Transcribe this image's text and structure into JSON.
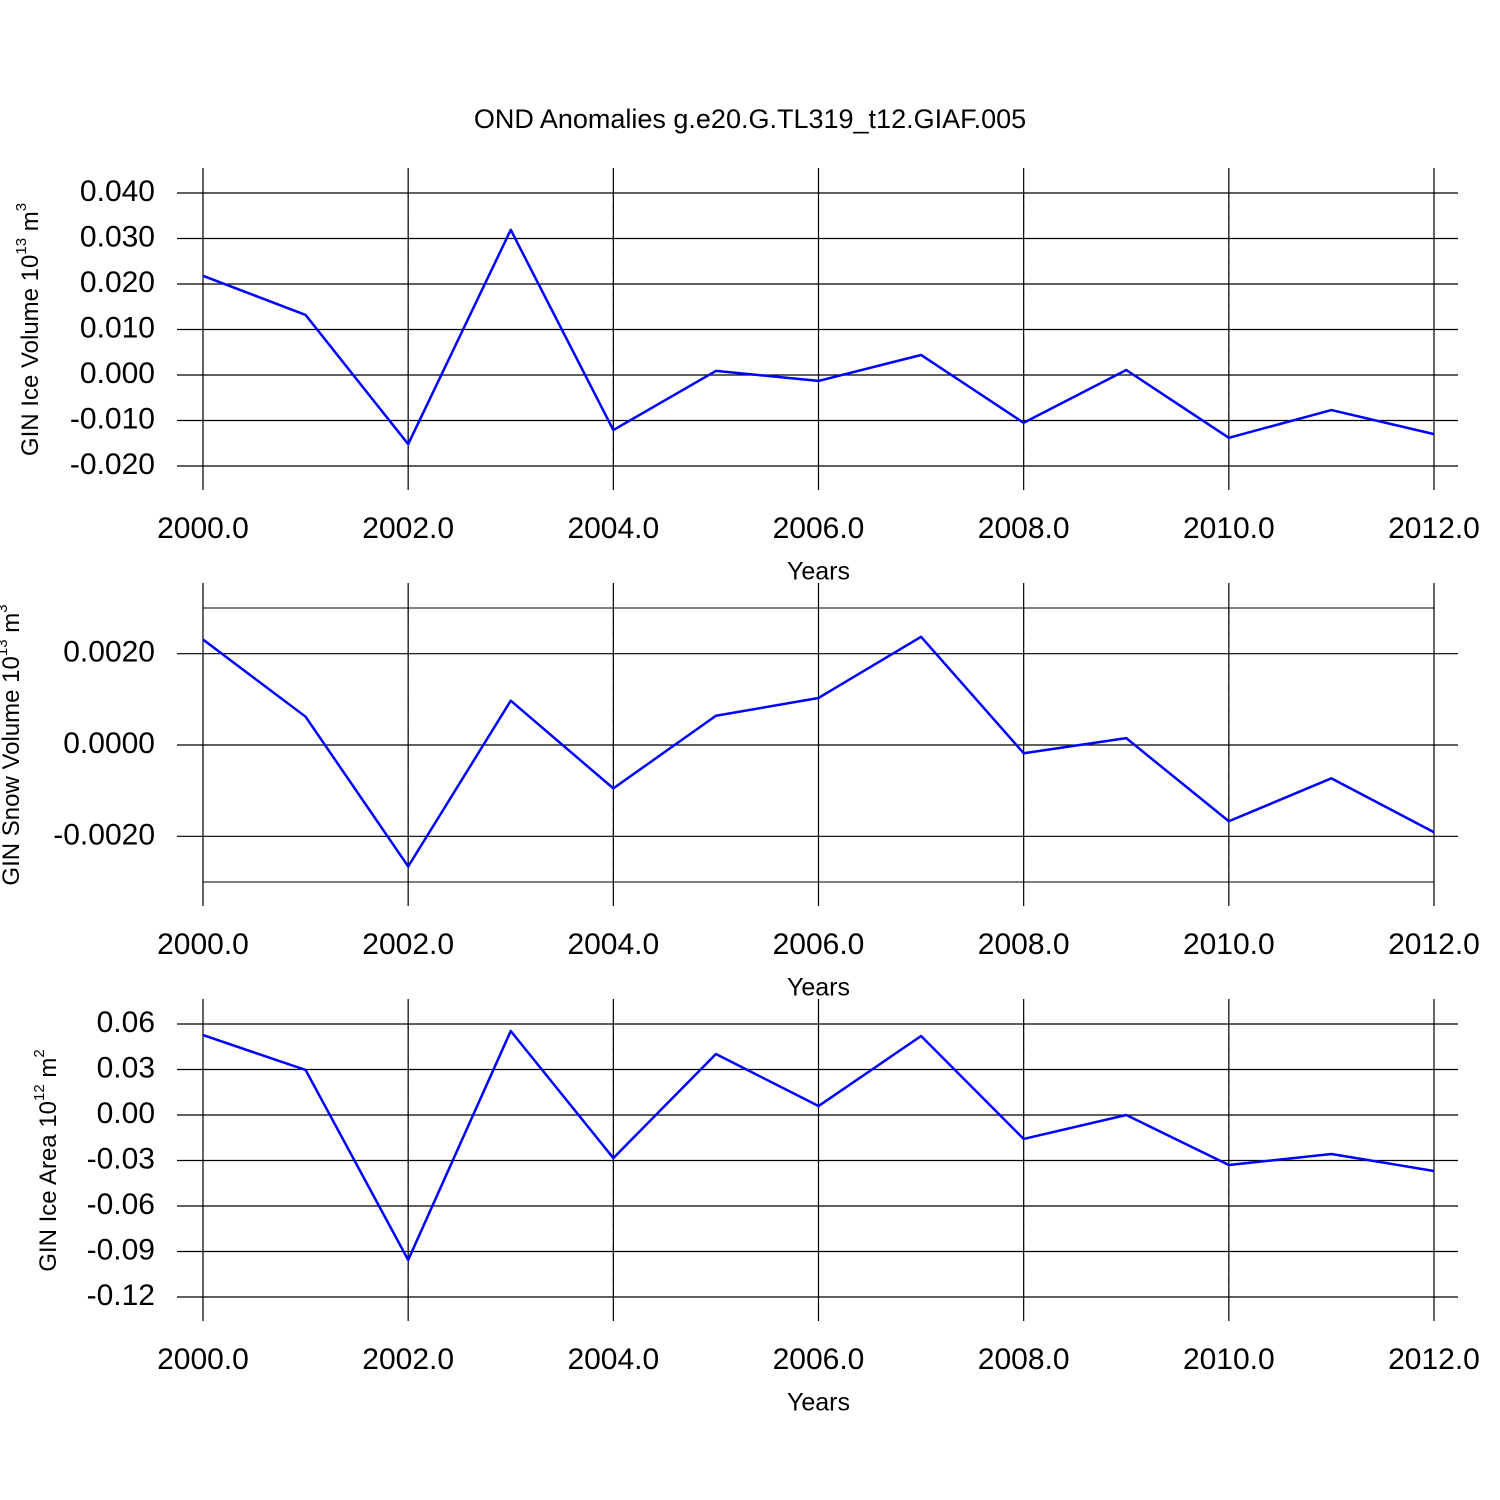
{
  "chart_data": [
    {
      "type": "line",
      "title": "OND Anomalies g.e20.G.TL319_t12.GIAF.005",
      "ylabel": [
        "GIN Ice Volume 10",
        "13",
        " m",
        "3"
      ],
      "xlabel": "Years",
      "x": [
        2000,
        2001,
        2002,
        2003,
        2004,
        2005,
        2006,
        2007,
        2008,
        2009,
        2010,
        2011,
        2012
      ],
      "values": [
        0.0218,
        0.0132,
        -0.0152,
        0.0319,
        -0.0121,
        0.0009,
        -0.0013,
        0.0044,
        -0.0105,
        0.0011,
        -0.0138,
        -0.0077,
        -0.013
      ],
      "color": "#0000ff",
      "xlim": [
        2000,
        2012
      ],
      "xticks": [
        {
          "value": 2000,
          "label": "2000.0"
        },
        {
          "value": 2002,
          "label": "2002.0"
        },
        {
          "value": 2004,
          "label": "2004.0"
        },
        {
          "value": 2006,
          "label": "2006.0"
        },
        {
          "value": 2008,
          "label": "2008.0"
        },
        {
          "value": 2010,
          "label": "2010.0"
        },
        {
          "value": 2012,
          "label": "2012.0"
        }
      ],
      "ylim": [
        -0.02,
        0.04
      ],
      "yticks": [
        {
          "value": -0.02,
          "label": "-0.020"
        },
        {
          "value": -0.01,
          "label": "-0.010"
        },
        {
          "value": 0,
          "label": "0.000"
        },
        {
          "value": 0.01,
          "label": "0.010"
        },
        {
          "value": 0.02,
          "label": "0.020"
        },
        {
          "value": 0.03,
          "label": "0.030"
        },
        {
          "value": 0.04,
          "label": "0.040"
        }
      ],
      "xgrid": true
    },
    {
      "type": "line",
      "ylabel": [
        "GIN Snow Volume 10",
        "13",
        " m",
        "3"
      ],
      "xlabel": "Years",
      "x": [
        2000,
        2001,
        2002,
        2003,
        2004,
        2005,
        2006,
        2007,
        2008,
        2009,
        2010,
        2011,
        2012
      ],
      "values": [
        0.00231,
        0.00062,
        -0.00266,
        0.00097,
        -0.00095,
        0.00064,
        0.00103,
        0.00237,
        -0.00018,
        0.00015,
        -0.00167,
        -0.00073,
        -0.00191
      ],
      "color": "#0000ff",
      "xlim": [
        2000,
        2012
      ],
      "xticks": [
        {
          "value": 2000,
          "label": "2000.0"
        },
        {
          "value": 2002,
          "label": "2002.0"
        },
        {
          "value": 2004,
          "label": "2004.0"
        },
        {
          "value": 2006,
          "label": "2006.0"
        },
        {
          "value": 2008,
          "label": "2008.0"
        },
        {
          "value": 2010,
          "label": "2010.0"
        },
        {
          "value": 2012,
          "label": "2012.0"
        }
      ],
      "ylim": [
        -0.003,
        0.003
      ],
      "yticks": [
        {
          "value": -0.002,
          "label": "-0.0020"
        },
        {
          "value": 0,
          "label": "0.0000"
        },
        {
          "value": 0.002,
          "label": "0.0020"
        }
      ],
      "xgrid": true
    },
    {
      "type": "line",
      "ylabel": [
        "GIN Ice Area 10",
        "12",
        " m",
        "2"
      ],
      "xlabel": "Years",
      "x": [
        2000,
        2001,
        2002,
        2003,
        2004,
        2005,
        2006,
        2007,
        2008,
        2009,
        2010,
        2011,
        2012
      ],
      "values": [
        0.0527,
        0.0297,
        -0.0956,
        0.0554,
        -0.0284,
        0.0402,
        0.0059,
        0.0521,
        -0.0158,
        0.0,
        -0.033,
        -0.0257,
        -0.0369
      ],
      "color": "#0000ff",
      "xlim": [
        2000,
        2012
      ],
      "xticks": [
        {
          "value": 2000,
          "label": "2000.0"
        },
        {
          "value": 2002,
          "label": "2002.0"
        },
        {
          "value": 2004,
          "label": "2004.0"
        },
        {
          "value": 2006,
          "label": "2006.0"
        },
        {
          "value": 2008,
          "label": "2008.0"
        },
        {
          "value": 2010,
          "label": "2010.0"
        },
        {
          "value": 2012,
          "label": "2012.0"
        }
      ],
      "ylim": [
        -0.12,
        0.06
      ],
      "yticks": [
        -0.12,
        -0.09,
        -0.06,
        -0.03,
        {
          "value": 0,
          "label": "0.00"
        },
        0.03,
        0.06
      ],
      "xgrid": true
    }
  ]
}
